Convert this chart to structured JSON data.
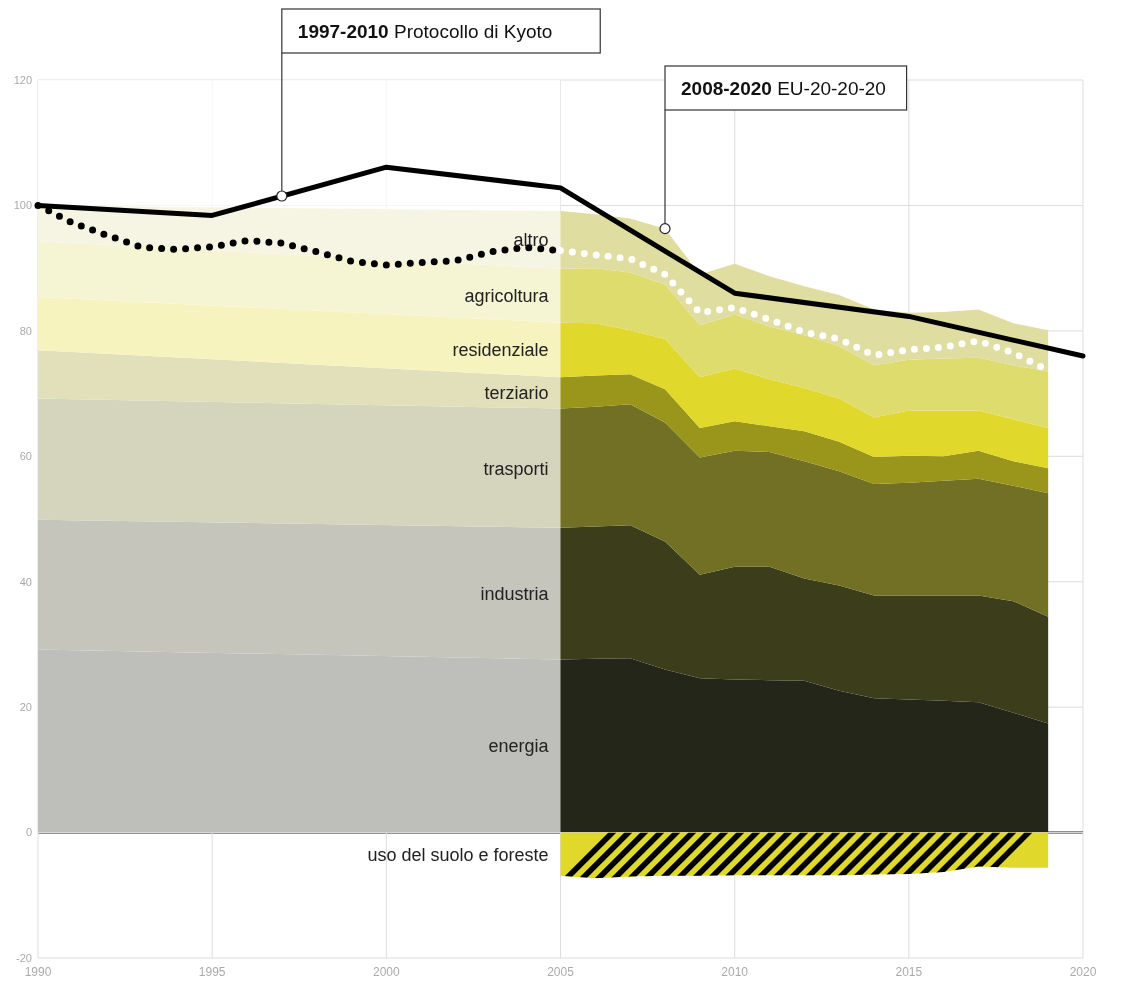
{
  "chart_data": [
    {
      "type": "area",
      "stacked": true,
      "tick_labels": "y",
      "xlim": [
        1990,
        2020
      ],
      "xticks": [
        1990,
        1995,
        2000,
        2005,
        2010,
        2015,
        2020
      ],
      "ylim": [
        0,
        120
      ],
      "yticks": [
        {
          "value": 0,
          "label": null
        },
        20,
        40,
        60,
        80,
        100,
        120
      ],
      "grid": true,
      "bands": [
        {
          "axis": "x",
          "from": 1990,
          "to": 2005,
          "color": "#ffffff"
        }
      ],
      "annotations": [
        {
          "text": "1997-2010 Protocollo di Kyoto",
          "x": 1997,
          "y": 101.5
        },
        {
          "text": "2008-2020 EU-20-20-20",
          "x": 2008,
          "y": 96.3
        }
      ],
      "series": [
        {
          "name": "energia",
          "color": "#25261a",
          "x": [
            1990,
            2005,
            2006,
            2007,
            2008,
            2009,
            2010,
            2011,
            2012,
            2013,
            2014,
            2015,
            2016,
            2017,
            2018,
            2019
          ],
          "values": [
            29.2,
            27.6,
            27.7,
            27.8,
            26.0,
            24.6,
            24.4,
            24.3,
            24.2,
            22.6,
            21.4,
            21.2,
            21.0,
            20.8,
            19.1,
            17.4
          ]
        },
        {
          "name": "industria",
          "color": "#3c3d1b",
          "x": [
            1990,
            2005,
            2006,
            2007,
            2008,
            2009,
            2010,
            2011,
            2012,
            2013,
            2014,
            2015,
            2016,
            2017,
            2018,
            2019
          ],
          "values": [
            20.7,
            21.0,
            21.1,
            21.2,
            20.4,
            16.5,
            18.0,
            18.1,
            16.3,
            16.8,
            16.4,
            16.6,
            16.8,
            17.0,
            17.8,
            17.0
          ]
        },
        {
          "name": "trasporti",
          "color": "#727024",
          "x": [
            1990,
            2005,
            2006,
            2007,
            2008,
            2009,
            2010,
            2011,
            2012,
            2013,
            2014,
            2015,
            2016,
            2017,
            2018,
            2019
          ],
          "values": [
            19.3,
            19.0,
            19.1,
            19.3,
            19.0,
            18.7,
            18.5,
            18.3,
            18.7,
            18.2,
            17.8,
            18.0,
            18.3,
            18.6,
            18.4,
            19.7
          ]
        },
        {
          "name": "terziario",
          "color": "#9a961c",
          "x": [
            1990,
            2005,
            2006,
            2007,
            2008,
            2009,
            2010,
            2011,
            2012,
            2013,
            2014,
            2015,
            2016,
            2017,
            2018,
            2019
          ],
          "values": [
            7.7,
            5.0,
            5.0,
            4.8,
            5.3,
            4.7,
            4.7,
            4.1,
            4.8,
            4.7,
            4.3,
            4.3,
            3.9,
            4.5,
            3.9,
            4.0
          ]
        },
        {
          "name": "residenziale",
          "color": "#e0d82a",
          "x": [
            1990,
            2005,
            2006,
            2007,
            2008,
            2009,
            2010,
            2011,
            2012,
            2013,
            2014,
            2015,
            2016,
            2017,
            2018,
            2019
          ],
          "values": [
            8.5,
            8.7,
            8.3,
            7.0,
            8.0,
            8.1,
            8.4,
            7.5,
            6.9,
            6.9,
            6.3,
            7.2,
            7.3,
            6.4,
            6.7,
            6.4
          ]
        },
        {
          "name": "agricoltura",
          "color": "#dedc6c",
          "x": [
            1990,
            2005,
            2006,
            2007,
            2008,
            2009,
            2010,
            2011,
            2012,
            2013,
            2014,
            2015,
            2016,
            2017,
            2018,
            2019
          ],
          "values": [
            8.9,
            8.6,
            8.8,
            9.2,
            8.7,
            8.3,
            8.6,
            8.4,
            8.4,
            8.4,
            8.3,
            8.1,
            8.3,
            8.4,
            8.6,
            9.0
          ]
        },
        {
          "name": "altro",
          "color": "#dfdda0",
          "x": [
            1990,
            2005,
            2006,
            2007,
            2008,
            2009,
            2010,
            2011,
            2012,
            2013,
            2014,
            2015,
            2016,
            2017,
            2018,
            2019
          ],
          "values": [
            5.7,
            9.2,
            8.6,
            8.6,
            8.9,
            8.1,
            8.1,
            8.0,
            7.8,
            8.1,
            8.9,
            7.5,
            7.4,
            7.7,
            6.7,
            6.6
          ]
        },
        {
          "type": "line",
          "color": "#000000",
          "line_style": "solid",
          "x": [
            1990,
            1995,
            2000,
            2005,
            2010,
            2015,
            2020
          ],
          "values": [
            100,
            98.4,
            106.1,
            102.8,
            86.0,
            82.3,
            76.0
          ]
        },
        {
          "type": "line",
          "color": "#000000",
          "line_style": "dotted",
          "x": [
            1990,
            1991,
            1992,
            1993,
            1994,
            1995,
            1996,
            1997,
            1998,
            1999,
            2000,
            2001,
            2002,
            2003,
            2004,
            2005
          ],
          "values": [
            100,
            97.2,
            95.2,
            93.3,
            93.0,
            93.4,
            94.4,
            94.0,
            92.6,
            91.1,
            90.5,
            90.9,
            91.2,
            92.6,
            93.3,
            92.8
          ]
        },
        {
          "type": "line",
          "color": "#ffffff",
          "line_style": "dotted",
          "x": [
            2005,
            2006,
            2007,
            2008,
            2009,
            2010,
            2011,
            2012,
            2013,
            2014,
            2015,
            2016,
            2017,
            2018,
            2019
          ],
          "values": [
            92.8,
            92.1,
            91.5,
            89.0,
            82.9,
            83.7,
            81.8,
            79.8,
            78.7,
            76.1,
            77.0,
            77.4,
            78.4,
            76.5,
            73.7
          ]
        }
      ]
    },
    {
      "type": "area",
      "xlim": [
        1990,
        2020
      ],
      "xticks": [
        1990,
        1995,
        2000,
        2005,
        2010,
        2015,
        2020
      ],
      "ylim": [
        -20,
        0
      ],
      "yticks": [
        -20,
        0
      ],
      "grid": true,
      "series": [
        {
          "name": "uso del suolo e foreste",
          "color": "#e0d82a",
          "x": [
            2005,
            2006,
            2007,
            2008,
            2009,
            2010,
            2011,
            2012,
            2013,
            2014,
            2015,
            2016,
            2017,
            2018,
            2019
          ],
          "values": [
            -6.9,
            -7.3,
            -7.0,
            -6.9,
            -6.9,
            -6.8,
            -6.8,
            -6.8,
            -6.8,
            -6.7,
            -6.6,
            -6.3,
            -5.4,
            -5.6,
            -5.6
          ]
        }
      ]
    }
  ]
}
